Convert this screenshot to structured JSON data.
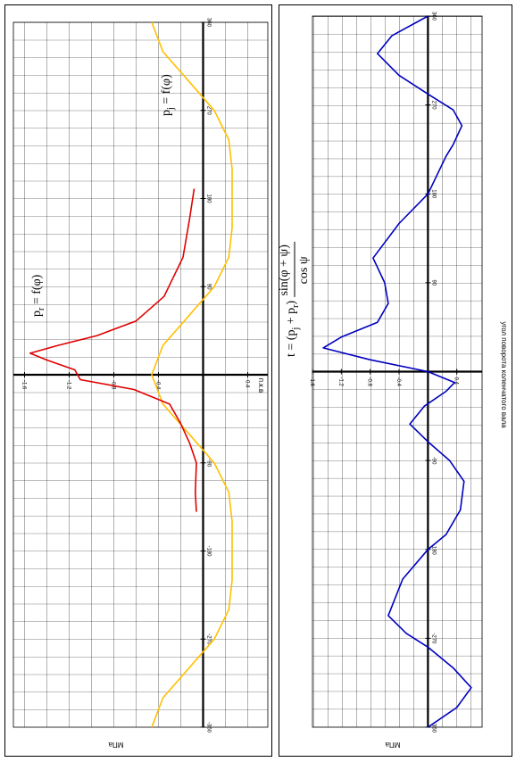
{
  "chart_data": [
    {
      "type": "line",
      "value_axis_label": "МПа",
      "angle_axis_label": "п.к.в",
      "annotations": [
        [
          {
            "text": "p"
          },
          {
            "text": "r",
            "sub": true
          },
          {
            "text": " = f(φ)"
          }
        ],
        [
          {
            "text": "p"
          },
          {
            "text": "j",
            "sub": true
          },
          {
            "text": " = f(φ)"
          }
        ]
      ],
      "xlim": [
        -360,
        360
      ],
      "xticks": [
        -360,
        -270,
        -180,
        -90,
        90,
        180,
        270,
        360
      ],
      "ylim": [
        -1.7,
        0.58
      ],
      "yticks": [
        -1.6,
        -1.2,
        -0.8,
        -0.4,
        0.4
      ],
      "grid": true,
      "series": [
        {
          "name": "p_j",
          "color": "#ffc000",
          "x": [
            360,
            330,
            300,
            270,
            240,
            210,
            180,
            150,
            120,
            90,
            60,
            30,
            0,
            -30,
            -60,
            -90,
            -120,
            -150,
            -180,
            -210,
            -240,
            -270,
            -300,
            -330,
            -360
          ],
          "values": [
            -0.46,
            -0.36,
            -0.13,
            0.1,
            0.23,
            0.26,
            0.26,
            0.26,
            0.23,
            0.1,
            -0.13,
            -0.36,
            -0.46,
            -0.36,
            -0.13,
            0.1,
            0.23,
            0.26,
            0.26,
            0.26,
            0.23,
            0.1,
            -0.13,
            -0.36,
            -0.46
          ]
        },
        {
          "name": "p_r",
          "color": "#e00000",
          "x": [
            -140,
            -120,
            -90,
            -70,
            -50,
            -30,
            -15,
            -5,
            5,
            15,
            22,
            30,
            40,
            55,
            80,
            120,
            160,
            190
          ],
          "values": [
            -0.06,
            -0.07,
            -0.06,
            -0.12,
            -0.2,
            -0.3,
            -0.62,
            -1.1,
            -1.15,
            -1.4,
            -1.55,
            -1.3,
            -0.95,
            -0.6,
            -0.35,
            -0.18,
            -0.12,
            -0.08
          ]
        }
      ]
    },
    {
      "type": "line",
      "value_axis_label": "МПа",
      "angle_axis_label": "угол поворота коленчатого вала",
      "annotations": [
        [
          {
            "text": "t = (p"
          },
          {
            "text": "j",
            "sub": true
          },
          {
            "text": " + p"
          },
          {
            "text": "r",
            "sub": true
          },
          {
            "text": ") "
          },
          {
            "text": "sin(φ + ψ)",
            "num": true
          },
          {
            "text": "cos ψ",
            "den": true
          }
        ]
      ],
      "xlim": [
        -360,
        360
      ],
      "xticks": [
        -360,
        -270,
        -180,
        -90,
        90,
        180,
        270,
        360
      ],
      "ylim": [
        -1.6,
        0.75
      ],
      "yticks": [
        -1.6,
        -1.2,
        -0.8,
        -0.4,
        0.4
      ],
      "grid": true,
      "series": [
        {
          "name": "t",
          "color": "#0000c0",
          "x": [
            360,
            340,
            322,
            300,
            281,
            265,
            249,
            230,
            218,
            180,
            150,
            115,
            90,
            69,
            50,
            35,
            24,
            12,
            0,
            -11,
            -20,
            -35,
            -53,
            -71,
            -90,
            -111,
            -140,
            -165,
            -180,
            -210,
            -247,
            -265,
            -279,
            -300,
            -320,
            -340,
            -360
          ],
          "values": [
            0,
            -0.5,
            -0.7,
            -0.4,
            0,
            0.35,
            0.47,
            0.35,
            0.25,
            0,
            -0.4,
            -0.76,
            -0.6,
            -0.55,
            -0.7,
            -1.2,
            -1.45,
            -0.8,
            0,
            0.37,
            0.25,
            -0.05,
            -0.25,
            0,
            0.3,
            0.5,
            0.45,
            0.25,
            0,
            -0.35,
            -0.55,
            -0.3,
            0,
            0.35,
            0.6,
            0.4,
            0
          ]
        }
      ]
    }
  ]
}
